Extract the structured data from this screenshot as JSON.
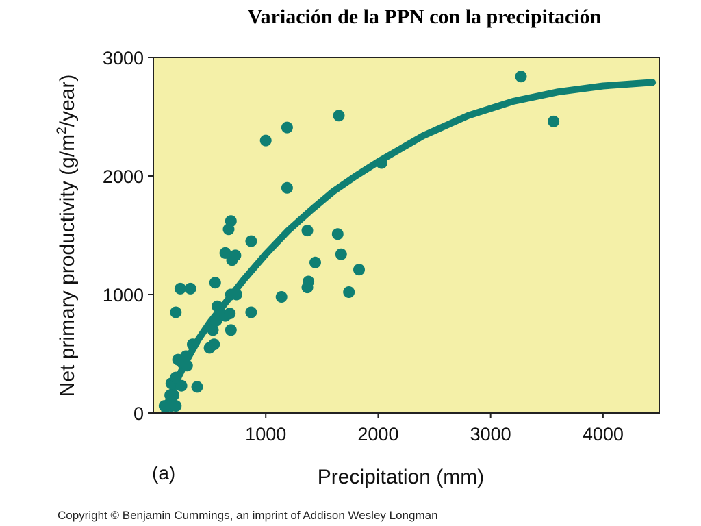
{
  "page": {
    "title": "Variación de la PPN con la precipitación",
    "copyright": "Copyright © Benjamin Cummings, an imprint of Addison Wesley Longman",
    "panel_label": "(a)"
  },
  "colors": {
    "plot_background": "#f4f0a8",
    "marker": "#0f7f73",
    "axis": "#222222"
  },
  "chart_data": {
    "type": "scatter",
    "xlabel": "Precipitation (mm)",
    "ylabel_parts": [
      "Net primary productivity (g/m",
      "2",
      "/year)"
    ],
    "xlim": [
      0,
      4500
    ],
    "ylim": [
      0,
      3000
    ],
    "xticks": [
      1000,
      2000,
      3000,
      4000
    ],
    "yticks": [
      0,
      1000,
      2000,
      3000
    ],
    "grid": false,
    "legend": "none",
    "points": [
      [
        100,
        60
      ],
      [
        130,
        60
      ],
      [
        160,
        60
      ],
      [
        200,
        60
      ],
      [
        150,
        150
      ],
      [
        180,
        150
      ],
      [
        160,
        250
      ],
      [
        200,
        300
      ],
      [
        250,
        230
      ],
      [
        220,
        450
      ],
      [
        260,
        420
      ],
      [
        300,
        400
      ],
      [
        290,
        480
      ],
      [
        350,
        580
      ],
      [
        390,
        220
      ],
      [
        200,
        850
      ],
      [
        240,
        1050
      ],
      [
        330,
        1050
      ],
      [
        500,
        550
      ],
      [
        540,
        580
      ],
      [
        530,
        700
      ],
      [
        560,
        780
      ],
      [
        600,
        830
      ],
      [
        570,
        900
      ],
      [
        640,
        820
      ],
      [
        680,
        840
      ],
      [
        690,
        700
      ],
      [
        550,
        1100
      ],
      [
        640,
        1350
      ],
      [
        690,
        1620
      ],
      [
        670,
        1550
      ],
      [
        700,
        1290
      ],
      [
        730,
        1330
      ],
      [
        690,
        1000
      ],
      [
        740,
        1000
      ],
      [
        870,
        850
      ],
      [
        870,
        1450
      ],
      [
        1000,
        2300
      ],
      [
        1140,
        980
      ],
      [
        1190,
        1900
      ],
      [
        1190,
        2410
      ],
      [
        1370,
        1060
      ],
      [
        1380,
        1110
      ],
      [
        1370,
        1540
      ],
      [
        1440,
        1270
      ],
      [
        1640,
        1510
      ],
      [
        1650,
        2510
      ],
      [
        1670,
        1340
      ],
      [
        1740,
        1020
      ],
      [
        1830,
        1210
      ],
      [
        2030,
        2110
      ],
      [
        3270,
        2840
      ],
      [
        3560,
        2460
      ]
    ],
    "curve": [
      [
        100,
        20
      ],
      [
        200,
        260
      ],
      [
        300,
        450
      ],
      [
        400,
        620
      ],
      [
        500,
        760
      ],
      [
        600,
        880
      ],
      [
        700,
        1000
      ],
      [
        800,
        1120
      ],
      [
        1000,
        1340
      ],
      [
        1200,
        1540
      ],
      [
        1400,
        1710
      ],
      [
        1600,
        1870
      ],
      [
        1800,
        2000
      ],
      [
        2000,
        2120
      ],
      [
        2400,
        2340
      ],
      [
        2800,
        2510
      ],
      [
        3200,
        2630
      ],
      [
        3600,
        2710
      ],
      [
        4000,
        2760
      ],
      [
        4440,
        2790
      ]
    ]
  }
}
